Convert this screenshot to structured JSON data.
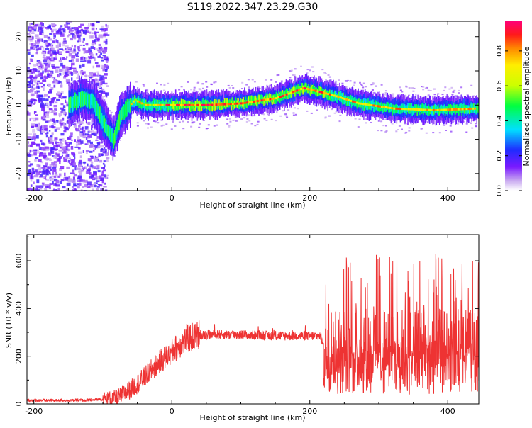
{
  "title": "S119.2022.347.23.29.G30",
  "chart_data": [
    {
      "type": "heatmap",
      "xlabel": "Height of straight line (km)",
      "ylabel": "Frequency (Hz)",
      "xlim": [
        -210,
        445
      ],
      "ylim": [
        -25,
        24.5
      ],
      "xticks": [
        -200,
        0,
        200,
        400
      ],
      "yticks": [
        -20,
        -10,
        0,
        10,
        20
      ],
      "colorbar": {
        "label": "Normalized spectral amplitude",
        "range": [
          0,
          0.97
        ],
        "ticks": [
          "0.0",
          "0.2",
          "0.4",
          "0.6",
          "0.8"
        ]
      },
      "ridge": [
        {
          "x": -150,
          "y": 0
        },
        {
          "x": -130,
          "y": 2
        },
        {
          "x": -115,
          "y": 1
        },
        {
          "x": -100,
          "y": -5
        },
        {
          "x": -85,
          "y": -10
        },
        {
          "x": -75,
          "y": -3
        },
        {
          "x": -55,
          "y": 1.5
        },
        {
          "x": -40,
          "y": 0
        },
        {
          "x": 0,
          "y": 0
        },
        {
          "x": 50,
          "y": 0
        },
        {
          "x": 100,
          "y": 0.5
        },
        {
          "x": 150,
          "y": 2
        },
        {
          "x": 190,
          "y": 5
        },
        {
          "x": 230,
          "y": 3
        },
        {
          "x": 270,
          "y": 0.5
        },
        {
          "x": 320,
          "y": -1
        },
        {
          "x": 380,
          "y": -1.5
        },
        {
          "x": 440,
          "y": -1
        }
      ]
    },
    {
      "type": "line",
      "xlabel": "Height of straight line (km)",
      "ylabel": "SNR (10 * v/v)",
      "xlim": [
        -210,
        445
      ],
      "ylim": [
        0,
        710
      ],
      "xticks": [
        -200,
        0,
        200,
        400
      ],
      "yticks": [
        0,
        200,
        400,
        600
      ],
      "series_color": "#ee3333",
      "envelope": [
        {
          "x": -210,
          "y": 15
        },
        {
          "x": -120,
          "y": 15
        },
        {
          "x": -80,
          "y": 25
        },
        {
          "x": -60,
          "y": 60
        },
        {
          "x": -40,
          "y": 110
        },
        {
          "x": -20,
          "y": 170
        },
        {
          "x": 0,
          "y": 220
        },
        {
          "x": 20,
          "y": 270
        },
        {
          "x": 40,
          "y": 290
        },
        {
          "x": 100,
          "y": 290
        },
        {
          "x": 150,
          "y": 285
        },
        {
          "x": 215,
          "y": 285
        },
        {
          "x": 222,
          "y": 240
        },
        {
          "x": 232,
          "y": 330
        },
        {
          "x": 260,
          "y": 300
        },
        {
          "x": 445,
          "y": 280
        }
      ]
    }
  ]
}
